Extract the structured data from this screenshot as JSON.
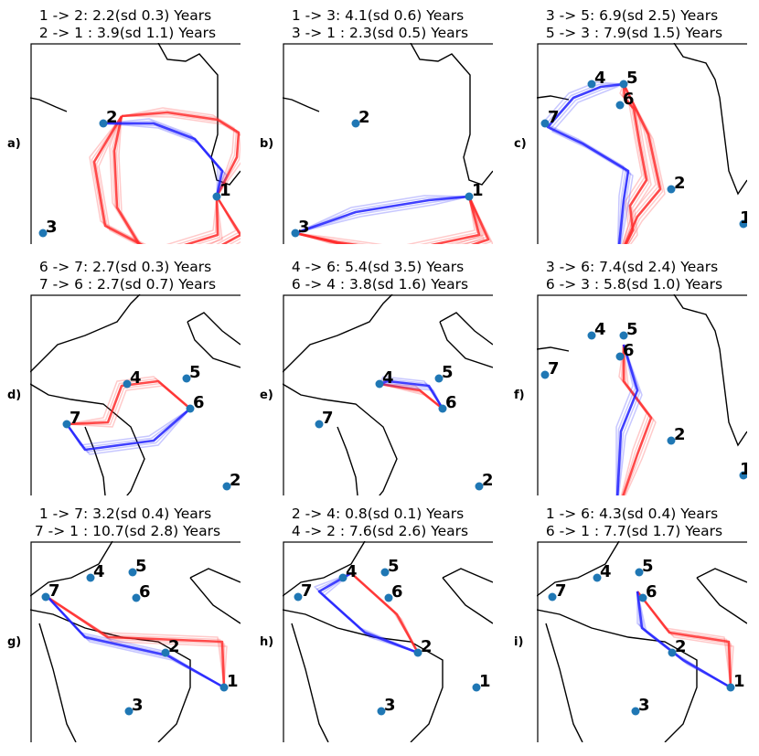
{
  "panels": [
    {
      "letter": "a)",
      "title1": "1 -> 2: 2.2(sd 0.3) Years",
      "title2": " 2 -> 1 : 3.9(sd 1.1) Years",
      "view": "A",
      "red": [
        [
          [
            100,
            80
          ],
          [
            150,
            76
          ],
          [
            205,
            84
          ],
          [
            228,
            98
          ],
          [
            226,
            125
          ],
          [
            204,
            168
          ]
        ],
        [
          [
            100,
            80
          ],
          [
            92,
            118
          ],
          [
            95,
            180
          ],
          [
            130,
            238
          ],
          [
            175,
            240
          ],
          [
            230,
            210
          ],
          [
            204,
            168
          ]
        ],
        [
          [
            100,
            80
          ],
          [
            70,
            130
          ],
          [
            82,
            200
          ],
          [
            140,
            230
          ],
          [
            205,
            210
          ],
          [
            204,
            168
          ]
        ]
      ],
      "blue": [
        [
          [
            80,
            88
          ],
          [
            135,
            88
          ],
          [
            180,
            105
          ],
          [
            210,
            140
          ],
          [
            204,
            168
          ]
        ]
      ],
      "sites": [
        {
          "id": "1"
        },
        {
          "id": "2"
        },
        {
          "id": "3"
        }
      ]
    },
    {
      "letter": "b)",
      "title1": "1 -> 3: 4.1(sd 0.6) Years",
      "title2": " 3 -> 1 : 2.3(sd 0.5) Years",
      "view": "A",
      "red": [
        [
          [
            204,
            168
          ],
          [
            215,
            210
          ],
          [
            130,
            228
          ],
          [
            60,
            218
          ],
          [
            14,
            208
          ]
        ],
        [
          [
            204,
            168
          ],
          [
            225,
            215
          ],
          [
            150,
            240
          ],
          [
            14,
            208
          ]
        ]
      ],
      "blue": [
        [
          [
            14,
            208
          ],
          [
            80,
            185
          ],
          [
            160,
            172
          ],
          [
            204,
            168
          ]
        ]
      ],
      "sites": [
        {
          "id": "1"
        },
        {
          "id": "2"
        },
        {
          "id": "3"
        }
      ]
    },
    {
      "letter": "c)",
      "title1": "3 -> 5: 6.9(sd 2.5) Years",
      "title2": " 5 -> 3 : 7.9(sd 1.5) Years",
      "view": "B",
      "red": [
        [
          [
            87,
            242
          ],
          [
            105,
            205
          ],
          [
            102,
            178
          ],
          [
            120,
            150
          ],
          [
            112,
            108
          ],
          [
            106,
            72
          ],
          [
            96,
            60
          ],
          [
            95,
            45
          ]
        ],
        [
          [
            87,
            242
          ],
          [
            110,
            190
          ],
          [
            135,
            160
          ],
          [
            122,
            100
          ],
          [
            95,
            45
          ]
        ]
      ],
      "blue": [
        [
          [
            95,
            45
          ],
          [
            70,
            48
          ],
          [
            40,
            60
          ],
          [
            12,
            92
          ],
          [
            50,
            110
          ],
          [
            100,
            140
          ],
          [
            95,
            172
          ],
          [
            88,
            242
          ]
        ]
      ],
      "sites": [
        {
          "id": "1"
        },
        {
          "id": "2"
        },
        {
          "id": "3"
        },
        {
          "id": "4"
        },
        {
          "id": "5"
        },
        {
          "id": "6"
        },
        {
          "id": "7"
        }
      ]
    },
    {
      "letter": "d)",
      "title1": "6 -> 7: 2.7(sd 0.3) Years",
      "title2": " 7 -> 6 : 2.7(sd 0.7) Years",
      "view": "C",
      "red": [
        [
          [
            40,
            142
          ],
          [
            85,
            140
          ],
          [
            100,
            100
          ],
          [
            140,
            95
          ],
          [
            175,
            125
          ]
        ]
      ],
      "blue": [
        [
          [
            175,
            125
          ],
          [
            135,
            160
          ],
          [
            60,
            170
          ],
          [
            40,
            142
          ]
        ]
      ],
      "sites": [
        {
          "id": "2"
        },
        {
          "id": "4"
        },
        {
          "id": "5"
        },
        {
          "id": "6"
        },
        {
          "id": "7"
        }
      ]
    },
    {
      "letter": "e)",
      "title1": "4 -> 6: 5.4(sd 3.5) Years",
      "title2": " 6 -> 4 : 3.8(sd 1.6) Years",
      "view": "C",
      "red": [
        [
          [
            106,
            98
          ],
          [
            150,
            105
          ],
          [
            175,
            125
          ]
        ]
      ],
      "blue": [
        [
          [
            175,
            125
          ],
          [
            160,
            100
          ],
          [
            115,
            95
          ],
          [
            106,
            98
          ]
        ]
      ],
      "sites": [
        {
          "id": "2"
        },
        {
          "id": "4"
        },
        {
          "id": "5"
        },
        {
          "id": "6"
        },
        {
          "id": "7"
        }
      ]
    },
    {
      "letter": "f)",
      "title1": "3 -> 6: 7.4(sd 2.4) Years",
      "title2": " 6 -> 3 : 5.8(sd 1.0) Years",
      "view": "B",
      "red": [
        [
          [
            87,
            242
          ],
          [
            110,
            175
          ],
          [
            125,
            135
          ],
          [
            95,
            95
          ],
          [
            95,
            55
          ]
        ]
      ],
      "blue": [
        [
          [
            95,
            55
          ],
          [
            110,
            105
          ],
          [
            92,
            150
          ],
          [
            87,
            242
          ]
        ]
      ],
      "sites": [
        {
          "id": "1"
        },
        {
          "id": "2"
        },
        {
          "id": "3"
        },
        {
          "id": "4"
        },
        {
          "id": "5"
        },
        {
          "id": "6"
        },
        {
          "id": "7"
        }
      ]
    },
    {
      "letter": "g)",
      "title1": "1 -> 7: 3.2(sd 0.4) Years",
      "title2": " 7 -> 1 : 10.7(sd 2.8) Years",
      "view": "D",
      "red": [
        [
          [
            20,
            62
          ],
          [
            85,
            105
          ],
          [
            210,
            110
          ],
          [
            212,
            160
          ]
        ]
      ],
      "blue": [
        [
          [
            212,
            160
          ],
          [
            150,
            125
          ],
          [
            60,
            105
          ],
          [
            20,
            62
          ]
        ]
      ],
      "sites": [
        {
          "id": "1"
        },
        {
          "id": "2"
        },
        {
          "id": "3"
        },
        {
          "id": "4"
        },
        {
          "id": "5"
        },
        {
          "id": "6"
        },
        {
          "id": "7"
        }
      ]
    },
    {
      "letter": "h)",
      "title1": "2 -> 4: 0.8(sd 0.1) Years",
      "title2": " 4 -> 2 : 7.6(sd 2.6) Years",
      "view": "D",
      "red": [
        [
          [
            148,
            122
          ],
          [
            125,
            80
          ],
          [
            75,
            35
          ]
        ]
      ],
      "blue": [
        [
          [
            75,
            35
          ],
          [
            40,
            55
          ],
          [
            90,
            100
          ],
          [
            148,
            122
          ]
        ]
      ],
      "sites": [
        {
          "id": "1"
        },
        {
          "id": "2"
        },
        {
          "id": "3"
        },
        {
          "id": "4"
        },
        {
          "id": "5"
        },
        {
          "id": "6"
        },
        {
          "id": "7"
        }
      ]
    },
    {
      "letter": "i)",
      "title1": "1 -> 6: 4.3(sd 0.4) Years",
      "title2": " 6 -> 1 : 7.7(sd 1.7) Years",
      "view": "D",
      "red": [
        [
          [
            110,
            55
          ],
          [
            145,
            100
          ],
          [
            210,
            110
          ],
          [
            212,
            160
          ]
        ]
      ],
      "blue": [
        [
          [
            212,
            160
          ],
          [
            160,
            130
          ],
          [
            115,
            95
          ],
          [
            110,
            55
          ]
        ]
      ],
      "sites": [
        {
          "id": "1"
        },
        {
          "id": "2"
        },
        {
          "id": "3"
        },
        {
          "id": "4"
        },
        {
          "id": "5"
        },
        {
          "id": "6"
        },
        {
          "id": "7"
        }
      ]
    }
  ],
  "colors": {
    "red": "#ff2a2a",
    "blue": "#1e1eff",
    "site": "#1f77b4",
    "coast": "#000000"
  }
}
